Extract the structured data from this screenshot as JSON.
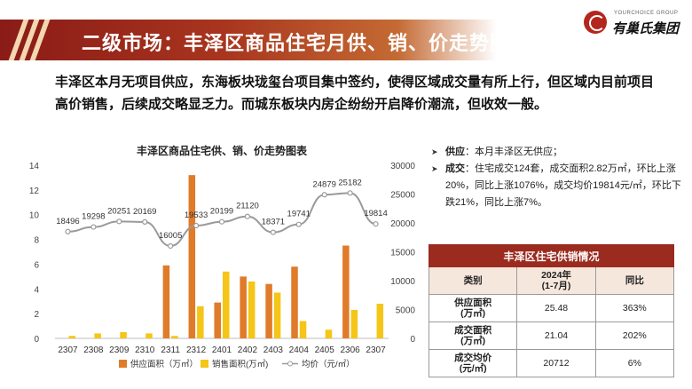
{
  "header": {
    "title": "二级市场：丰泽区商品住宅月供、销、价走势图表",
    "logo_en": "YOURCHOICE GROUP",
    "logo_cn": "有巢氏集团"
  },
  "summary": "丰泽区本月无项目供应，东海板块珑玺台项目集中签约，使得区域成交量有所上行，但区域内目前项目高价销售，后续成交略显乏力。而城东板块内房企纷纷开启降价潮流，但收效一般。",
  "bullets": [
    {
      "key": "供应",
      "text": "本月丰泽区无供应；"
    },
    {
      "key": "成交",
      "text": "住宅成交124套，成交面积2.82万㎡，环比上涨20%，同比上涨1076%，成交均价19814元/㎡，环比下跌21%，同比上涨7%。"
    }
  ],
  "table": {
    "caption": "丰泽区住宅供销情况",
    "headers": [
      "类别",
      "2024年\n(1-7月)",
      "同比"
    ],
    "rows": [
      [
        "供应面积\n(万㎡)",
        "25.48",
        "363%"
      ],
      [
        "成交面积\n(万㎡)",
        "21.04",
        "202%"
      ],
      [
        "成交均价\n(元/㎡)",
        "20712",
        "6%"
      ]
    ]
  },
  "chart_data": {
    "type": "bar",
    "title": "丰泽区商品住宅供、销、价走势图表",
    "categories": [
      "2307",
      "2308",
      "2309",
      "2310",
      "2311",
      "2312",
      "2401",
      "2402",
      "2403",
      "2404",
      "2405",
      "2306",
      "2307"
    ],
    "series": [
      {
        "name": "供应面积（万㎡）",
        "type": "bar",
        "axis": "left",
        "color": "#e07b2a",
        "values": [
          0,
          0,
          0,
          0,
          5.9,
          13.2,
          2.9,
          5.0,
          4.4,
          5.8,
          0,
          7.5,
          0
        ]
      },
      {
        "name": "销售面积(万㎡)",
        "type": "bar",
        "axis": "left",
        "color": "#f5c518",
        "values": [
          0.2,
          0.4,
          0.5,
          0.4,
          0.2,
          2.6,
          5.4,
          4.6,
          3.7,
          1.4,
          0.7,
          2.3,
          2.8
        ]
      },
      {
        "name": "均价（元/㎡）",
        "type": "line",
        "axis": "right",
        "color": "#9a9a9a",
        "values": [
          18496,
          19298,
          20251,
          20169,
          16005,
          19533,
          20199,
          21120,
          18371,
          19741,
          24879,
          25182,
          19814
        ]
      }
    ],
    "ylim_left": [
      0,
      14
    ],
    "yticks_left": [
      0,
      2,
      4,
      6,
      8,
      10,
      12,
      14
    ],
    "ylim_right": [
      0,
      30000
    ],
    "yticks_right": [
      0,
      5000,
      10000,
      15000,
      20000,
      25000,
      30000
    ],
    "legend_position": "bottom"
  }
}
